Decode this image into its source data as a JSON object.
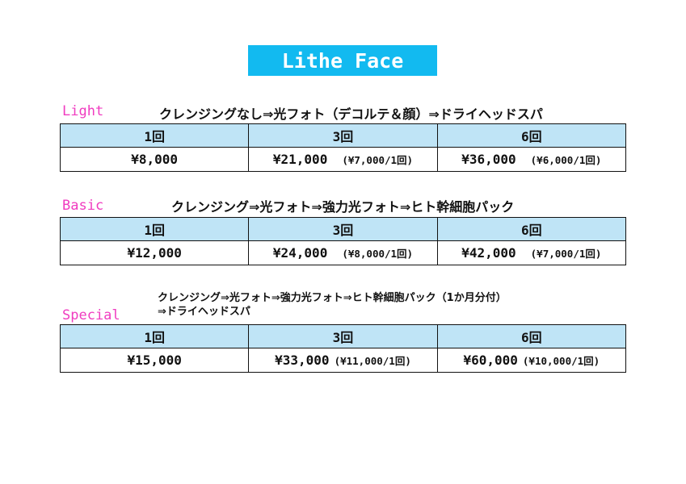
{
  "title": "Lithe Face",
  "sections": [
    {
      "plan": "Light",
      "desc": "クレンジングなし⇒光フォト（デコルテ＆顔）⇒ドライヘッドスパ",
      "headers": [
        "1回",
        "3回",
        "6回"
      ],
      "prices": [
        "¥8,000",
        "¥21,000",
        "¥36,000"
      ],
      "notes": [
        "",
        "(¥7,000/1回)",
        "(¥6,000/1回)"
      ]
    },
    {
      "plan": "Basic",
      "desc": "クレンジング⇒光フォト⇒強力光フォト⇒ヒト幹細胞パック",
      "headers": [
        "1回",
        "3回",
        "6回"
      ],
      "prices": [
        "¥12,000",
        "¥24,000",
        "¥42,000"
      ],
      "notes": [
        "",
        "(¥8,000/1回)",
        "(¥7,000/1回)"
      ]
    },
    {
      "plan": "Special",
      "desc_line1": "クレンジング⇒光フォト⇒強力光フォト⇒ヒト幹細胞パック（1か月分付）",
      "desc_line2": "⇒ドライヘッドスパ",
      "headers": [
        "1回",
        "3回",
        "6回"
      ],
      "prices": [
        "¥15,000",
        "¥33,000",
        "¥60,000"
      ],
      "notes": [
        "",
        "(¥11,000/1回)",
        "(¥10,000/1回)"
      ]
    }
  ]
}
